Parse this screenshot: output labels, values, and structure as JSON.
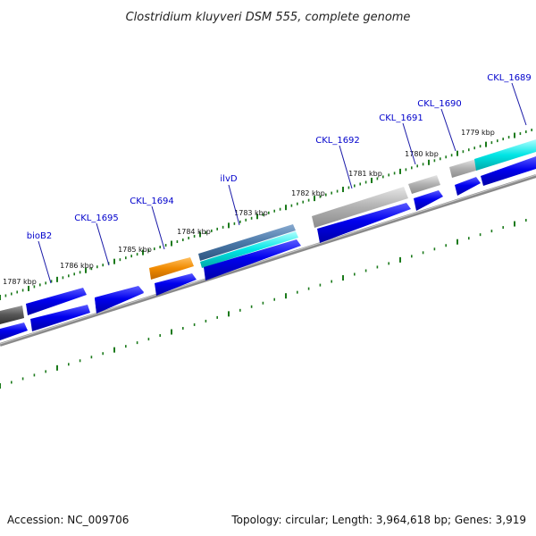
{
  "title": "Clostridium kluyveri DSM 555, complete genome",
  "footer": {
    "accession": "Accession: NC_009706",
    "summary": "Topology: circular; Length: 3,964,618 bp; Genes: 3,919"
  },
  "tick_labels": [
    "1787 kbp",
    "1786 kbp",
    "1785 kbp",
    "1784 kbp",
    "1783 kbp",
    "1782 kbp",
    "1781 kbp",
    "1780 kbp",
    "1779 kbp"
  ],
  "gene_labels": [
    "bioB2",
    "CKL_1695",
    "CKL_1694",
    "ilvD",
    "CKL_1692",
    "CKL_1691",
    "CKL_1690",
    "CKL_1689"
  ],
  "colors": {
    "cds_blue": "#0000ee",
    "gray_feature": "#a9a9a9",
    "dark_gray_feature": "#555555",
    "orange_feature": "#f08a00",
    "cyan_feature": "#00e5e5",
    "steel_feature": "#4a78a8",
    "backbone": "#8a8a8a",
    "ticks": "#1b7a1b",
    "label_blue": "#0000cc"
  }
}
